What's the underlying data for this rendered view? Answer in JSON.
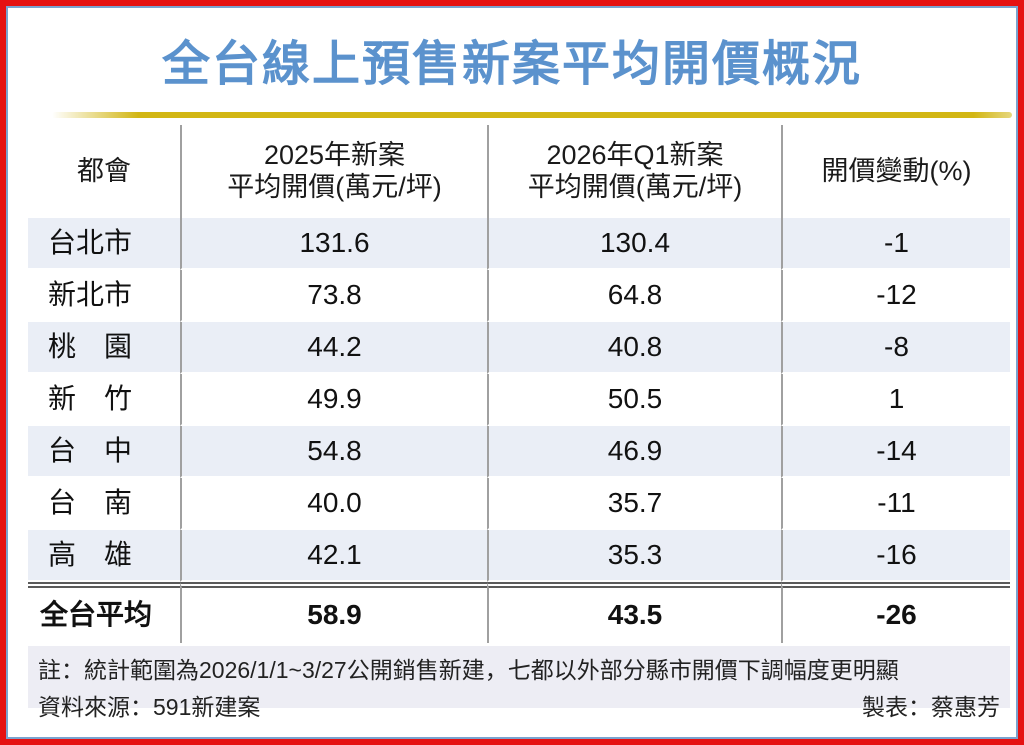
{
  "title": "全台線上預售新案平均開價概況",
  "colors": {
    "outer_border_red": "#e51212",
    "inner_border_blue": "#7aa3cf",
    "title_blue": "#5b92cd",
    "gold_rule": "#d2b614",
    "row_alt_bg": "#eaeef6",
    "footer_bg": "#ededf4",
    "column_divider": "#a0a0a0",
    "total_separator": "#5a5a5a"
  },
  "chart_data": {
    "type": "table",
    "title": "全台線上預售新案平均開價概況",
    "columns": [
      "都會",
      "2025年新案平均開價(萬元/坪)",
      "2026年Q1新案平均開價(萬元/坪)",
      "開價變動(%)"
    ],
    "rows": [
      [
        "台北市",
        131.6,
        130.4,
        -1
      ],
      [
        "新北市",
        73.8,
        64.8,
        -12
      ],
      [
        "桃園",
        44.2,
        40.8,
        -8
      ],
      [
        "新竹",
        49.9,
        50.5,
        1
      ],
      [
        "台中",
        54.8,
        46.9,
        -14
      ],
      [
        "台南",
        40.0,
        35.7,
        -11
      ],
      [
        "高雄",
        42.1,
        35.3,
        -16
      ]
    ],
    "total_row": [
      "全台平均",
      58.9,
      43.5,
      -26
    ]
  },
  "table": {
    "headers": {
      "col1": "都會",
      "col2_line1": "2025年新案",
      "col2_line2": "平均開價(萬元/坪)",
      "col3_line1": "2026年Q1新案",
      "col3_line2": "平均開價(萬元/坪)",
      "col4": "開價變動(%)"
    },
    "rows": [
      {
        "city": "台北市",
        "p2025": "131.6",
        "p2026q1": "130.4",
        "change": "-1"
      },
      {
        "city": "新北市",
        "p2025": "73.8",
        "p2026q1": "64.8",
        "change": "-12"
      },
      {
        "city": "桃　園",
        "p2025": "44.2",
        "p2026q1": "40.8",
        "change": "-8"
      },
      {
        "city": "新　竹",
        "p2025": "49.9",
        "p2026q1": "50.5",
        "change": "1"
      },
      {
        "city": "台　中",
        "p2025": "54.8",
        "p2026q1": "46.9",
        "change": "-14"
      },
      {
        "city": "台　南",
        "p2025": "40.0",
        "p2026q1": "35.7",
        "change": "-11"
      },
      {
        "city": "高　雄",
        "p2025": "42.1",
        "p2026q1": "35.3",
        "change": "-16"
      }
    ],
    "total": {
      "city": "全台平均",
      "p2025": "58.9",
      "p2026q1": "43.5",
      "change": "-26"
    }
  },
  "footer": {
    "note": "註：統計範圍為2026/1/1~3/27公開銷售新建，七都以外部分縣市開價下調幅度更明顯",
    "source": "資料來源：591新建案",
    "credit": "製表：蔡惠芳"
  }
}
